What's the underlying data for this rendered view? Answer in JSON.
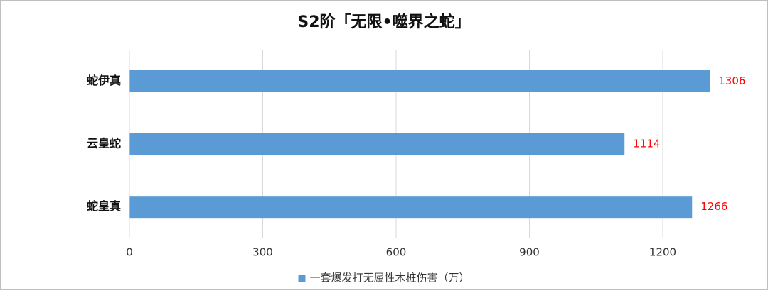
{
  "chart_data": {
    "type": "hbar",
    "title": "S2阶「无限•噬界之蛇」",
    "categories": [
      "蛇伊真",
      "云皇蛇",
      "蛇皇真"
    ],
    "series": [
      {
        "name": "一套爆发打无属性木桩伤害（万）",
        "color": "#5b9bd5",
        "values": [
          1306,
          1114,
          1266
        ]
      }
    ],
    "label_color": "#ff0000",
    "xlim": [
      0,
      1400
    ],
    "xticks": [
      0,
      300,
      600,
      900,
      1200
    ],
    "grid": true,
    "legend": "bottom"
  }
}
